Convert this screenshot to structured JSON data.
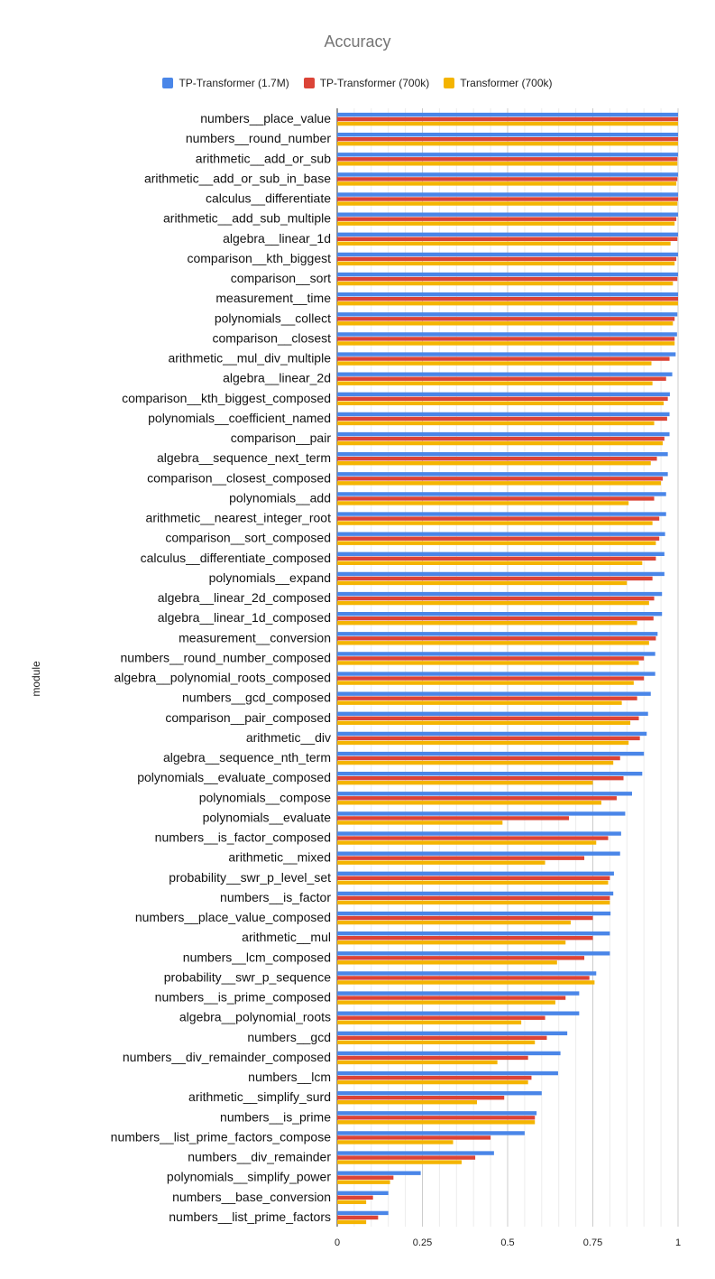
{
  "chart_data": {
    "type": "bar",
    "orientation": "horizontal",
    "title": "Accuracy",
    "xlabel": "",
    "ylabel": "module",
    "xlim": [
      0,
      1
    ],
    "xticks": [
      "0",
      "0.25",
      "0.5",
      "0.75",
      "1"
    ],
    "grid": true,
    "legend_position": "top",
    "categories": [
      "numbers__place_value",
      "numbers__round_number",
      "arithmetic__add_or_sub",
      "arithmetic__add_or_sub_in_base",
      "calculus__differentiate",
      "arithmetic__add_sub_multiple",
      "algebra__linear_1d",
      "comparison__kth_biggest",
      "comparison__sort",
      "measurement__time",
      "polynomials__collect",
      "comparison__closest",
      "arithmetic__mul_div_multiple",
      "algebra__linear_2d",
      "comparison__kth_biggest_composed",
      "polynomials__coefficient_named",
      "comparison__pair",
      "algebra__sequence_next_term",
      "comparison__closest_composed",
      "polynomials__add",
      "arithmetic__nearest_integer_root",
      "comparison__sort_composed",
      "calculus__differentiate_composed",
      "polynomials__expand",
      "algebra__linear_2d_composed",
      "algebra__linear_1d_composed",
      "measurement__conversion",
      "numbers__round_number_composed",
      "algebra__polynomial_roots_composed",
      "numbers__gcd_composed",
      "comparison__pair_composed",
      "arithmetic__div",
      "algebra__sequence_nth_term",
      "polynomials__evaluate_composed",
      "polynomials__compose",
      "polynomials__evaluate",
      "numbers__is_factor_composed",
      "arithmetic__mixed",
      "probability__swr_p_level_set",
      "numbers__is_factor",
      "numbers__place_value_composed",
      "arithmetic__mul",
      "numbers__lcm_composed",
      "probability__swr_p_sequence",
      "numbers__is_prime_composed",
      "algebra__polynomial_roots",
      "numbers__gcd",
      "numbers__div_remainder_composed",
      "numbers__lcm",
      "arithmetic__simplify_surd",
      "numbers__is_prime",
      "numbers__list_prime_factors_compose",
      "numbers__div_remainder",
      "polynomials__simplify_power",
      "numbers__base_conversion",
      "numbers__list_prime_factors"
    ],
    "series": [
      {
        "name": "TP-Transformer (1.7M)",
        "color": "#4a86e8",
        "values": [
          1.0,
          1.0,
          1.0,
          1.0,
          1.0,
          1.0,
          1.0,
          1.0,
          1.0,
          1.0,
          0.998,
          0.997,
          0.993,
          0.983,
          0.976,
          0.975,
          0.975,
          0.97,
          0.97,
          0.965,
          0.965,
          0.962,
          0.96,
          0.96,
          0.953,
          0.953,
          0.94,
          0.933,
          0.933,
          0.92,
          0.912,
          0.908,
          0.9,
          0.895,
          0.865,
          0.845,
          0.833,
          0.83,
          0.812,
          0.81,
          0.802,
          0.8,
          0.8,
          0.76,
          0.71,
          0.71,
          0.675,
          0.655,
          0.648,
          0.6,
          0.585,
          0.55,
          0.46,
          0.245,
          0.15,
          0.15
        ]
      },
      {
        "name": "TP-Transformer (700k)",
        "color": "#db4437",
        "values": [
          1.0,
          1.0,
          0.998,
          0.998,
          1.0,
          0.995,
          0.998,
          0.995,
          0.998,
          1.0,
          0.99,
          0.99,
          0.975,
          0.965,
          0.97,
          0.968,
          0.96,
          0.938,
          0.955,
          0.93,
          0.945,
          0.945,
          0.935,
          0.925,
          0.93,
          0.928,
          0.935,
          0.9,
          0.9,
          0.88,
          0.885,
          0.888,
          0.83,
          0.84,
          0.82,
          0.68,
          0.795,
          0.725,
          0.8,
          0.8,
          0.75,
          0.75,
          0.725,
          0.74,
          0.67,
          0.61,
          0.615,
          0.56,
          0.57,
          0.49,
          0.58,
          0.45,
          0.405,
          0.165,
          0.105,
          0.12
        ]
      },
      {
        "name": "Transformer (700k)",
        "color": "#f4b400",
        "values": [
          1.0,
          1.0,
          0.998,
          0.995,
          0.998,
          0.99,
          0.978,
          0.99,
          0.985,
          1.0,
          0.985,
          0.99,
          0.922,
          0.925,
          0.958,
          0.93,
          0.955,
          0.92,
          0.95,
          0.855,
          0.925,
          0.935,
          0.895,
          0.85,
          0.915,
          0.88,
          0.915,
          0.885,
          0.87,
          0.835,
          0.86,
          0.855,
          0.81,
          0.75,
          0.775,
          0.485,
          0.76,
          0.61,
          0.795,
          0.8,
          0.685,
          0.67,
          0.645,
          0.755,
          0.64,
          0.54,
          0.58,
          0.47,
          0.56,
          0.41,
          0.58,
          0.34,
          0.365,
          0.155,
          0.085,
          0.085
        ]
      }
    ]
  }
}
